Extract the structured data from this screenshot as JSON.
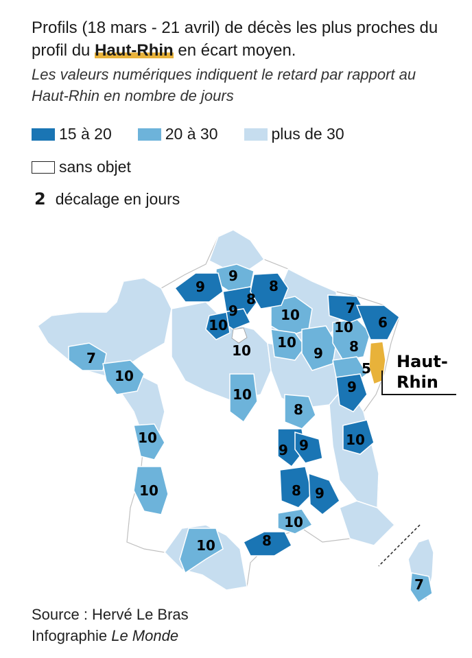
{
  "header": {
    "title_part1": "Profils (18 mars - 21 avril) de décès les plus proches du profil du ",
    "title_highlight": "Haut-Rhin",
    "title_part2": " en écart moyen.",
    "subtitle": "Les valeurs numériques indiquent le retard par rapport au Haut-Rhin en nombre de jours"
  },
  "legend": {
    "items": [
      {
        "label": "15 à 20",
        "color": "#1a75b4"
      },
      {
        "label": "20 à 30",
        "color": "#6db3da"
      },
      {
        "label": "plus de 30",
        "color": "#c6ddef"
      }
    ],
    "none_label": "sans objet",
    "none_color": "#ffffff",
    "shift_number": "2",
    "shift_label": "décalage en jours"
  },
  "colors": {
    "haut_rhin": "#e8b23a",
    "border": "#ffffff",
    "outline": "#333333"
  },
  "map": {
    "callout_line1": "Haut-",
    "callout_line2": "Rhin",
    "labels": [
      {
        "text": "9",
        "band": "15-20"
      },
      {
        "text": "9",
        "band": "20-30"
      },
      {
        "text": "8",
        "band": "15-20"
      },
      {
        "text": "8",
        "band": "15-20"
      },
      {
        "text": "9",
        "band": "15-20"
      },
      {
        "text": "10",
        "band": "15-20"
      },
      {
        "text": "10",
        "band": "plus de 30"
      },
      {
        "text": "10",
        "band": "20-30"
      },
      {
        "text": "10",
        "band": "20-30"
      },
      {
        "text": "9",
        "band": "20-30"
      },
      {
        "text": "7",
        "band": "15-20"
      },
      {
        "text": "10",
        "band": "15-20"
      },
      {
        "text": "6",
        "band": "15-20"
      },
      {
        "text": "8",
        "band": "20-30"
      },
      {
        "text": "5",
        "band": "Haut-Rhin"
      },
      {
        "text": "9",
        "band": "15-20"
      },
      {
        "text": "7",
        "band": "20-30"
      },
      {
        "text": "10",
        "band": "20-30"
      },
      {
        "text": "10",
        "band": "20-30"
      },
      {
        "text": "8",
        "band": "20-30"
      },
      {
        "text": "10",
        "band": "20-30"
      },
      {
        "text": "9",
        "band": "15-20"
      },
      {
        "text": "9",
        "band": "15-20"
      },
      {
        "text": "10",
        "band": "15-20"
      },
      {
        "text": "10",
        "band": "20-30"
      },
      {
        "text": "8",
        "band": "15-20"
      },
      {
        "text": "9",
        "band": "15-20"
      },
      {
        "text": "10",
        "band": "20-30"
      },
      {
        "text": "10",
        "band": "20-30"
      },
      {
        "text": "8",
        "band": "15-20"
      },
      {
        "text": "7",
        "band": "20-30"
      }
    ]
  },
  "footer": {
    "source": "Source : Hervé Le Bras",
    "credit_prefix": "Infographie ",
    "credit_name": "Le Monde"
  }
}
